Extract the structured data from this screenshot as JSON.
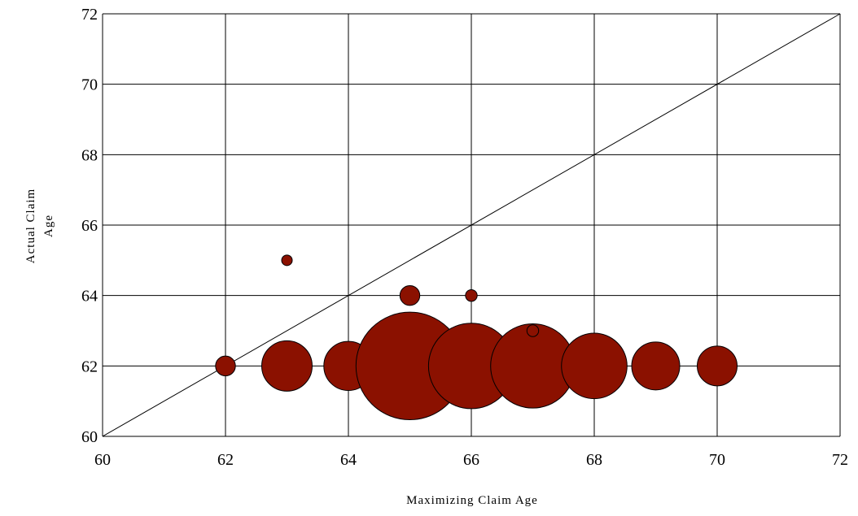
{
  "chart_data": {
    "type": "scatter",
    "subtype": "bubble",
    "xlabel": "Maximizing Claim Age",
    "ylabel_lines": [
      "Actual Claim",
      "Age"
    ],
    "xlim": [
      60,
      72
    ],
    "ylim": [
      60,
      72
    ],
    "xticks": [
      60,
      62,
      64,
      66,
      68,
      70,
      72
    ],
    "yticks": [
      60,
      62,
      64,
      66,
      68,
      70,
      72
    ],
    "grid": true,
    "reference_line": {
      "from": [
        60,
        60
      ],
      "to": [
        72,
        72
      ]
    },
    "bubble_color": "#8b1100",
    "points": [
      {
        "x": 62,
        "y": 62,
        "size": 0.17
      },
      {
        "x": 63,
        "y": 62,
        "size": 0.43
      },
      {
        "x": 64,
        "y": 62,
        "size": 0.42
      },
      {
        "x": 65,
        "y": 62,
        "size": 0.92
      },
      {
        "x": 66,
        "y": 62,
        "size": 0.73
      },
      {
        "x": 67,
        "y": 62,
        "size": 0.72
      },
      {
        "x": 68,
        "y": 62,
        "size": 0.56
      },
      {
        "x": 69,
        "y": 62,
        "size": 0.41
      },
      {
        "x": 70,
        "y": 62,
        "size": 0.34
      },
      {
        "x": 63,
        "y": 65,
        "size": 0.09
      },
      {
        "x": 65,
        "y": 64,
        "size": 0.17
      },
      {
        "x": 66,
        "y": 64,
        "size": 0.1
      },
      {
        "x": 67,
        "y": 63,
        "size": 0.1
      }
    ]
  }
}
